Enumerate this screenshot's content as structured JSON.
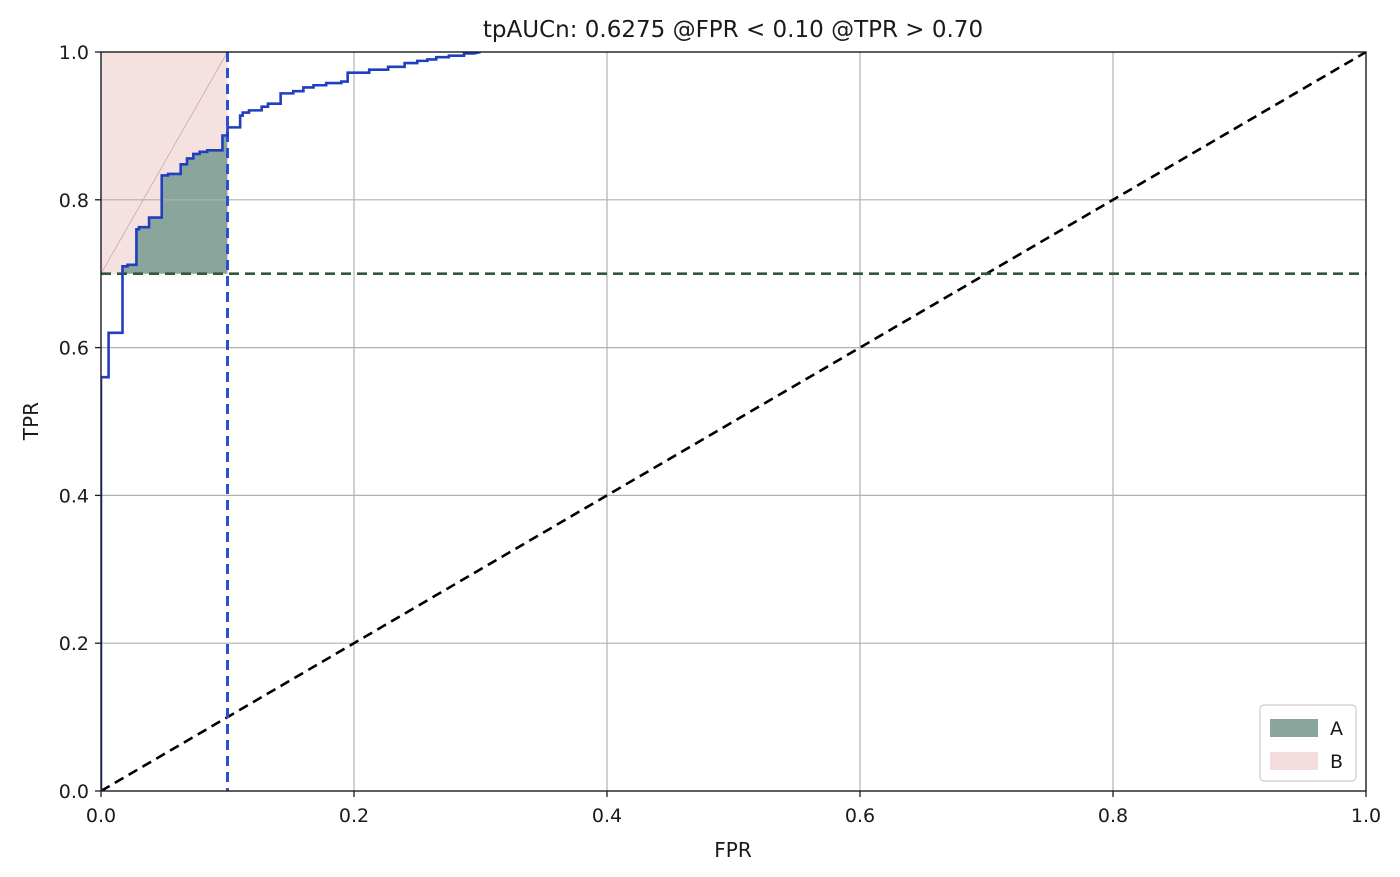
{
  "chart_data": {
    "type": "line",
    "title": "tpAUCn: 0.6275 @FPR < 0.10 @TPR > 0.70",
    "xlabel": "FPR",
    "ylabel": "TPR",
    "xlim": [
      0,
      1
    ],
    "ylim": [
      0,
      1
    ],
    "xticks": [
      0.0,
      0.2,
      0.4,
      0.6,
      0.8,
      1.0
    ],
    "yticks": [
      0.0,
      0.2,
      0.4,
      0.6,
      0.8,
      1.0
    ],
    "xtick_labels": [
      "0.0",
      "0.2",
      "0.4",
      "0.6",
      "0.8",
      "1.0"
    ],
    "ytick_labels": [
      "0.0",
      "0.2",
      "0.4",
      "0.6",
      "0.8",
      "1.0"
    ],
    "grid": true,
    "legend_position": "bottom-right",
    "fpr_threshold": 0.1,
    "tpr_threshold": 0.7,
    "colors": {
      "roc": "#1f3fbf",
      "fpr_line": "#2a4fd0",
      "tpr_line": "#2f5a3a",
      "diagonal": "#000000",
      "region_a": "#8aa69c",
      "region_b": "#f5dcdc",
      "grid": "#b0b0b0"
    },
    "series": [
      {
        "role": "roc",
        "x": [
          0.0,
          0.0,
          0.006,
          0.006,
          0.017,
          0.017,
          0.021,
          0.021,
          0.028,
          0.028,
          0.03,
          0.03,
          0.038,
          0.038,
          0.048,
          0.048,
          0.053,
          0.053,
          0.063,
          0.063,
          0.068,
          0.068,
          0.073,
          0.073,
          0.078,
          0.078,
          0.084,
          0.084,
          0.096,
          0.096,
          0.1,
          0.1,
          0.11,
          0.11,
          0.112,
          0.112,
          0.117,
          0.117,
          0.127,
          0.127,
          0.132,
          0.132,
          0.142,
          0.142,
          0.152,
          0.152,
          0.16,
          0.16,
          0.168,
          0.168,
          0.178,
          0.178,
          0.19,
          0.19,
          0.195,
          0.195,
          0.212,
          0.212,
          0.227,
          0.227,
          0.24,
          0.24,
          0.25,
          0.25,
          0.258,
          0.258,
          0.265,
          0.265,
          0.275,
          0.275,
          0.287,
          0.287,
          0.295,
          0.3
        ],
        "y": [
          0.0,
          0.56,
          0.56,
          0.62,
          0.62,
          0.71,
          0.71,
          0.712,
          0.712,
          0.76,
          0.76,
          0.763,
          0.763,
          0.776,
          0.776,
          0.833,
          0.833,
          0.835,
          0.835,
          0.848,
          0.848,
          0.856,
          0.856,
          0.862,
          0.862,
          0.865,
          0.865,
          0.867,
          0.867,
          0.887,
          0.887,
          0.898,
          0.898,
          0.914,
          0.914,
          0.918,
          0.918,
          0.921,
          0.921,
          0.926,
          0.926,
          0.93,
          0.93,
          0.944,
          0.944,
          0.947,
          0.947,
          0.952,
          0.952,
          0.955,
          0.955,
          0.958,
          0.958,
          0.96,
          0.96,
          0.972,
          0.972,
          0.976,
          0.976,
          0.98,
          0.98,
          0.985,
          0.985,
          0.988,
          0.988,
          0.99,
          0.99,
          0.993,
          0.993,
          0.995,
          0.995,
          0.998,
          0.998,
          1.0
        ]
      },
      {
        "role": "diagonal",
        "x": [
          0.0,
          1.0
        ],
        "y": [
          0.0,
          1.0
        ]
      }
    ],
    "legend": [
      {
        "label": "A",
        "color": "#8aa69c"
      },
      {
        "label": "B",
        "color": "#f5dcdc"
      }
    ]
  }
}
